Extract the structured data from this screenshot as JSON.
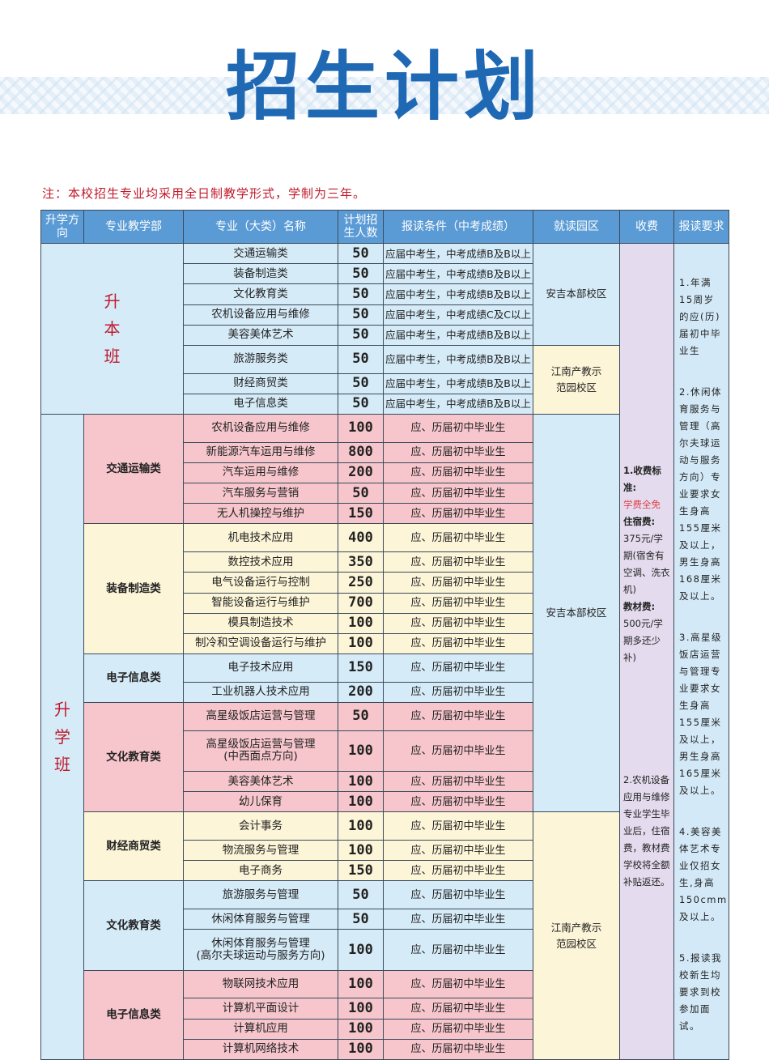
{
  "title": "招生计划",
  "note": "注：本校招生专业均采用全日制教学形式，学制为三年。",
  "colors": {
    "header": "#5b9bd5",
    "blue": "#d6ebf8",
    "pink": "#f6c6cc",
    "yellow": "#fcf5d8",
    "lavender": "#e4dcee",
    "red": "#c0192b",
    "title": "#1f68b3"
  },
  "headers": [
    "升学方向",
    "专业教学部",
    "专业（大类）名称",
    "计划招生人数",
    "报读条件（中考成绩）",
    "就读园区",
    "收费",
    "报读要求"
  ],
  "directions": [
    {
      "label": "升本班",
      "color": "blue",
      "departments": [
        {
          "name": "",
          "color": "blue",
          "rows": [
            {
              "major": "交通运输类",
              "count": "50",
              "condition": "应届中考生，中考成绩B及B以上",
              "campus": "安吉本部校区"
            },
            {
              "major": "装备制造类",
              "count": "50",
              "condition": "应届中考生，中考成绩B及B以上",
              "campus": "安吉本部校区"
            },
            {
              "major": "文化教育类",
              "count": "50",
              "condition": "应届中考生，中考成绩B及B以上",
              "campus": "安吉本部校区"
            },
            {
              "major": "农机设备应用与维修",
              "count": "50",
              "condition": "应届中考生，中考成绩C及C以上",
              "campus": "安吉本部校区"
            },
            {
              "major": "美容美体艺术",
              "count": "50",
              "condition": "应届中考生，中考成绩B及B以上",
              "campus": "安吉本部校区"
            },
            {
              "major": "旅游服务类",
              "count": "50",
              "condition": "应届中考生，中考成绩B及B以上",
              "campus": "江南产教示范园校区"
            },
            {
              "major": "财经商贸类",
              "count": "50",
              "condition": "应届中考生，中考成绩B及B以上",
              "campus": "江南产教示范园校区"
            },
            {
              "major": "电子信息类",
              "count": "50",
              "condition": "应届中考生，中考成绩B及B以上",
              "campus": "江南产教示范园校区"
            }
          ]
        }
      ]
    },
    {
      "label": "升学班",
      "color": "blue",
      "departments": [
        {
          "name": "交通运输类",
          "color": "pink",
          "rows": [
            {
              "major": "农机设备应用与维修",
              "count": "100",
              "condition": "应、历届初中毕业生",
              "campus": "安吉本部校区"
            },
            {
              "major": "新能源汽车运用与维修",
              "count": "800",
              "condition": "应、历届初中毕业生",
              "campus": "安吉本部校区"
            },
            {
              "major": "汽车运用与维修",
              "count": "200",
              "condition": "应、历届初中毕业生",
              "campus": "安吉本部校区"
            },
            {
              "major": "汽车服务与营销",
              "count": "50",
              "condition": "应、历届初中毕业生",
              "campus": "安吉本部校区"
            },
            {
              "major": "无人机操控与维护",
              "count": "150",
              "condition": "应、历届初中毕业生",
              "campus": "安吉本部校区"
            }
          ]
        },
        {
          "name": "装备制造类",
          "color": "yellow",
          "rows": [
            {
              "major": "机电技术应用",
              "count": "400",
              "condition": "应、历届初中毕业生",
              "campus": "安吉本部校区"
            },
            {
              "major": "数控技术应用",
              "count": "350",
              "condition": "应、历届初中毕业生",
              "campus": "安吉本部校区"
            },
            {
              "major": "电气设备运行与控制",
              "count": "250",
              "condition": "应、历届初中毕业生",
              "campus": "安吉本部校区"
            },
            {
              "major": "智能设备运行与维护",
              "count": "700",
              "condition": "应、历届初中毕业生",
              "campus": "安吉本部校区"
            },
            {
              "major": "模具制造技术",
              "count": "100",
              "condition": "应、历届初中毕业生",
              "campus": "安吉本部校区"
            },
            {
              "major": "制冷和空调设备运行与维护",
              "count": "100",
              "condition": "应、历届初中毕业生",
              "campus": "安吉本部校区"
            }
          ]
        },
        {
          "name": "电子信息类",
          "color": "blue",
          "rows": [
            {
              "major": "电子技术应用",
              "count": "150",
              "condition": "应、历届初中毕业生",
              "campus": "安吉本部校区"
            },
            {
              "major": "工业机器人技术应用",
              "count": "200",
              "condition": "应、历届初中毕业生",
              "campus": "安吉本部校区"
            }
          ]
        },
        {
          "name": "文化教育类",
          "color": "pink",
          "rows": [
            {
              "major": "高星级饭店运营与管理",
              "count": "50",
              "condition": "应、历届初中毕业生",
              "campus": "安吉本部校区"
            },
            {
              "major": "高星级饭店运营与管理",
              "sub": "(中西面点方向)",
              "count": "100",
              "condition": "应、历届初中毕业生",
              "campus": "安吉本部校区"
            },
            {
              "major": "美容美体艺术",
              "count": "100",
              "condition": "应、历届初中毕业生",
              "campus": "安吉本部校区"
            },
            {
              "major": "幼儿保育",
              "count": "100",
              "condition": "应、历届初中毕业生",
              "campus": "安吉本部校区"
            }
          ]
        },
        {
          "name": "财经商贸类",
          "color": "yellow",
          "rows": [
            {
              "major": "会计事务",
              "count": "100",
              "condition": "应、历届初中毕业生",
              "campus": "江南产教示范园校区"
            },
            {
              "major": "物流服务与管理",
              "count": "100",
              "condition": "应、历届初中毕业生",
              "campus": "江南产教示范园校区"
            },
            {
              "major": "电子商务",
              "count": "150",
              "condition": "应、历届初中毕业生",
              "campus": "江南产教示范园校区"
            }
          ]
        },
        {
          "name": "文化教育类",
          "color": "blue",
          "rows": [
            {
              "major": "旅游服务与管理",
              "count": "50",
              "condition": "应、历届初中毕业生",
              "campus": "江南产教示范园校区"
            },
            {
              "major": "休闲体育服务与管理",
              "count": "50",
              "condition": "应、历届初中毕业生",
              "campus": "江南产教示范园校区"
            },
            {
              "major": "休闲体育服务与管理",
              "sub": "(高尔夫球运动与服务方向)",
              "count": "100",
              "condition": "应、历届初中毕业生",
              "campus": "江南产教示范园校区"
            }
          ]
        },
        {
          "name": "电子信息类",
          "color": "pink",
          "rows": [
            {
              "major": "物联网技术应用",
              "count": "100",
              "condition": "应、历届初中毕业生",
              "campus": "江南产教示范园校区"
            },
            {
              "major": "计算机平面设计",
              "count": "100",
              "condition": "应、历届初中毕业生",
              "campus": "江南产教示范园校区"
            },
            {
              "major": "计算机应用",
              "count": "100",
              "condition": "应、历届初中毕业生",
              "campus": "江南产教示范园校区"
            },
            {
              "major": "计算机网络技术",
              "count": "100",
              "condition": "应、历届初中毕业生",
              "campus": "江南产教示范园校区"
            }
          ]
        }
      ]
    }
  ],
  "campus_colors": {
    "安吉本部校区": "blue",
    "江南产教示范园校区": "yellow"
  },
  "fees": {
    "standard_label": "1.收费标准:",
    "tuition": "学费全免",
    "dorm_label": "住宿费:",
    "dorm": "375元/学期(宿舍有空调、洗衣机)",
    "book_label": "教材费:",
    "book": "500元/学期多还少补)",
    "note2": "2.农机设备应用与维修专业学生毕业后，住宿费，教材费学校将全额补贴返还。"
  },
  "requirements": [
    "1.年满15周岁的应(历)届初中毕业生",
    "2.休闲体育服务与管理（高尔夫球运动与服务方向）专业要求女生身高155厘米及以上，男生身高168厘米及以上。",
    "3.高星级饭店运营与管理专业要求女生身高155厘米及以上，男生身高165厘米及以上。",
    "4.美容美体艺术专业仅招女生,身高150cmm及以上。",
    "5.报读我校新生均要求到校参加面试。"
  ]
}
